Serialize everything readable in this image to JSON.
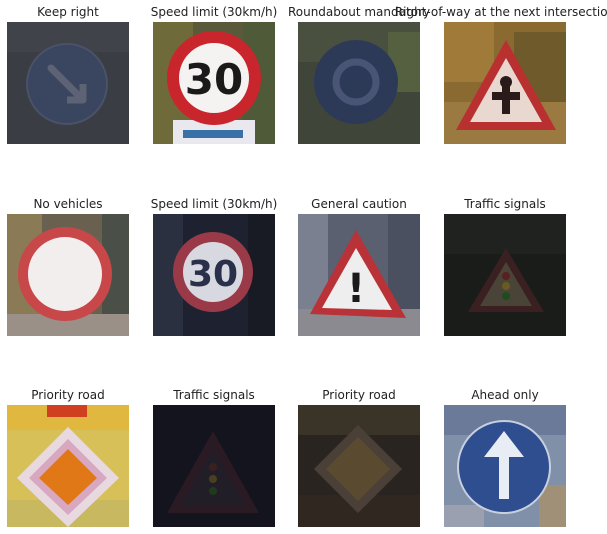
{
  "panels": [
    {
      "title": "Keep right"
    },
    {
      "title": "Speed limit (30km/h)"
    },
    {
      "title": "Roundabout mandatory"
    },
    {
      "title": "Right-of-way at the next intersection"
    },
    {
      "title": "No vehicles"
    },
    {
      "title": "Speed limit (30km/h)"
    },
    {
      "title": "General caution"
    },
    {
      "title": "Traffic signals"
    },
    {
      "title": "Priority road"
    },
    {
      "title": "Traffic signals"
    },
    {
      "title": "Priority road"
    },
    {
      "title": "Ahead only"
    }
  ],
  "sign_text": {
    "speed_1": "30",
    "speed_2": "30",
    "caution_mark": "!"
  }
}
